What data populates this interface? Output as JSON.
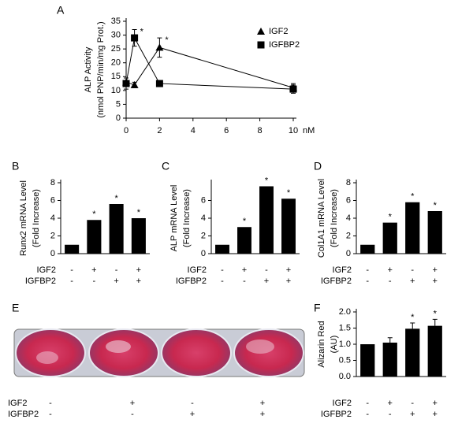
{
  "chart_data": [
    {
      "type": "line",
      "title": "A",
      "ylabel": [
        "ALP Activity",
        "(nmol PNP/min/mg Prot.)"
      ],
      "x_unit": "nM",
      "x": [
        0,
        0.5,
        2,
        10
      ],
      "xlim": [
        0,
        10
      ],
      "xticks": [
        0,
        2,
        4,
        6,
        8,
        10
      ],
      "ylim": [
        0,
        35
      ],
      "yticks": [
        0,
        5,
        10,
        15,
        20,
        25,
        30,
        35
      ],
      "series": [
        {
          "name": "IGF2",
          "marker": "triangle",
          "color": "#000000",
          "values": [
            13,
            12,
            25.5,
            11
          ],
          "errors": [
            1.5,
            1,
            3.5,
            1.5
          ],
          "markers": [
            null,
            null,
            "*",
            null
          ]
        },
        {
          "name": "IGFBP2",
          "marker": "square",
          "color": "#000000",
          "values": [
            12.5,
            29,
            12.5,
            10.5
          ],
          "errors": [
            2,
            3,
            1,
            1.5
          ],
          "markers": [
            null,
            "*",
            null,
            null
          ]
        }
      ]
    },
    {
      "type": "bar",
      "title": "B",
      "ylabel": [
        "Runx2 mRNA Level",
        "(Fold Increase)"
      ],
      "ylim": [
        0,
        8
      ],
      "yticks": [
        0,
        2,
        4,
        6,
        8
      ],
      "color": "#000000",
      "values": [
        1,
        3.8,
        5.6,
        4.0
      ],
      "markers": [
        null,
        "*",
        "*",
        "*"
      ],
      "condition_rows": [
        {
          "name": "IGF2",
          "signs": [
            "-",
            "+",
            "-",
            "+"
          ]
        },
        {
          "name": "IGFBP2",
          "signs": [
            "-",
            "-",
            "+",
            "+"
          ]
        }
      ]
    },
    {
      "type": "bar",
      "title": "C",
      "ylabel": [
        "ALP mRNA Level",
        "(Fold Increase)"
      ],
      "ylim": [
        0,
        8
      ],
      "yticks": [
        0,
        2,
        4,
        6
      ],
      "color": "#000000",
      "values": [
        1,
        3,
        7.6,
        6.2
      ],
      "markers": [
        null,
        "*",
        "*",
        "*"
      ],
      "condition_rows": [
        {
          "name": "IGF2",
          "signs": [
            "-",
            "+",
            "-",
            "+"
          ]
        },
        {
          "name": "IGFBP2",
          "signs": [
            "-",
            "-",
            "+",
            "+"
          ]
        }
      ]
    },
    {
      "type": "bar",
      "title": "D",
      "ylabel": [
        "Col1A1 mRNA Level",
        "(Fold Increase)"
      ],
      "ylim": [
        0,
        8
      ],
      "yticks": [
        0,
        2,
        4,
        6,
        8
      ],
      "color": "#000000",
      "values": [
        1,
        3.5,
        5.8,
        4.8
      ],
      "markers": [
        null,
        "*",
        "*",
        "*"
      ],
      "condition_rows": [
        {
          "name": "IGF2",
          "signs": [
            "-",
            "+",
            "-",
            "+"
          ]
        },
        {
          "name": "IGFBP2",
          "signs": [
            "-",
            "-",
            "+",
            "+"
          ]
        }
      ]
    },
    {
      "type": "bar",
      "title": "F",
      "ylabel": [
        "Alizarin Red",
        "(AU)"
      ],
      "ylim": [
        0,
        2
      ],
      "yticks": [
        {
          "value": 0,
          "label": "0.0"
        },
        {
          "value": 0.5,
          "label": "0.5"
        },
        {
          "value": 1,
          "label": "1.0"
        },
        {
          "value": 1.5,
          "label": "1.5"
        },
        {
          "value": 2,
          "label": "2.0"
        }
      ],
      "color": "#000000",
      "values": [
        1,
        1.05,
        1.48,
        1.57
      ],
      "errors": [
        0,
        0.15,
        0.18,
        0.2
      ],
      "markers": [
        null,
        null,
        "*",
        "*"
      ],
      "condition_rows": [
        {
          "name": "IGF2",
          "signs": [
            "-",
            "+",
            "-",
            "+"
          ]
        },
        {
          "name": "IGFBP2",
          "signs": [
            "-",
            "-",
            "+",
            "+"
          ]
        }
      ]
    }
  ],
  "panel_e": {
    "title": "E",
    "condition_rows": [
      {
        "name": "IGF2",
        "signs": [
          "-",
          "+",
          "-",
          "+"
        ]
      },
      {
        "name": "IGFBP2",
        "signs": [
          "-",
          "-",
          "+",
          "+"
        ]
      }
    ]
  }
}
